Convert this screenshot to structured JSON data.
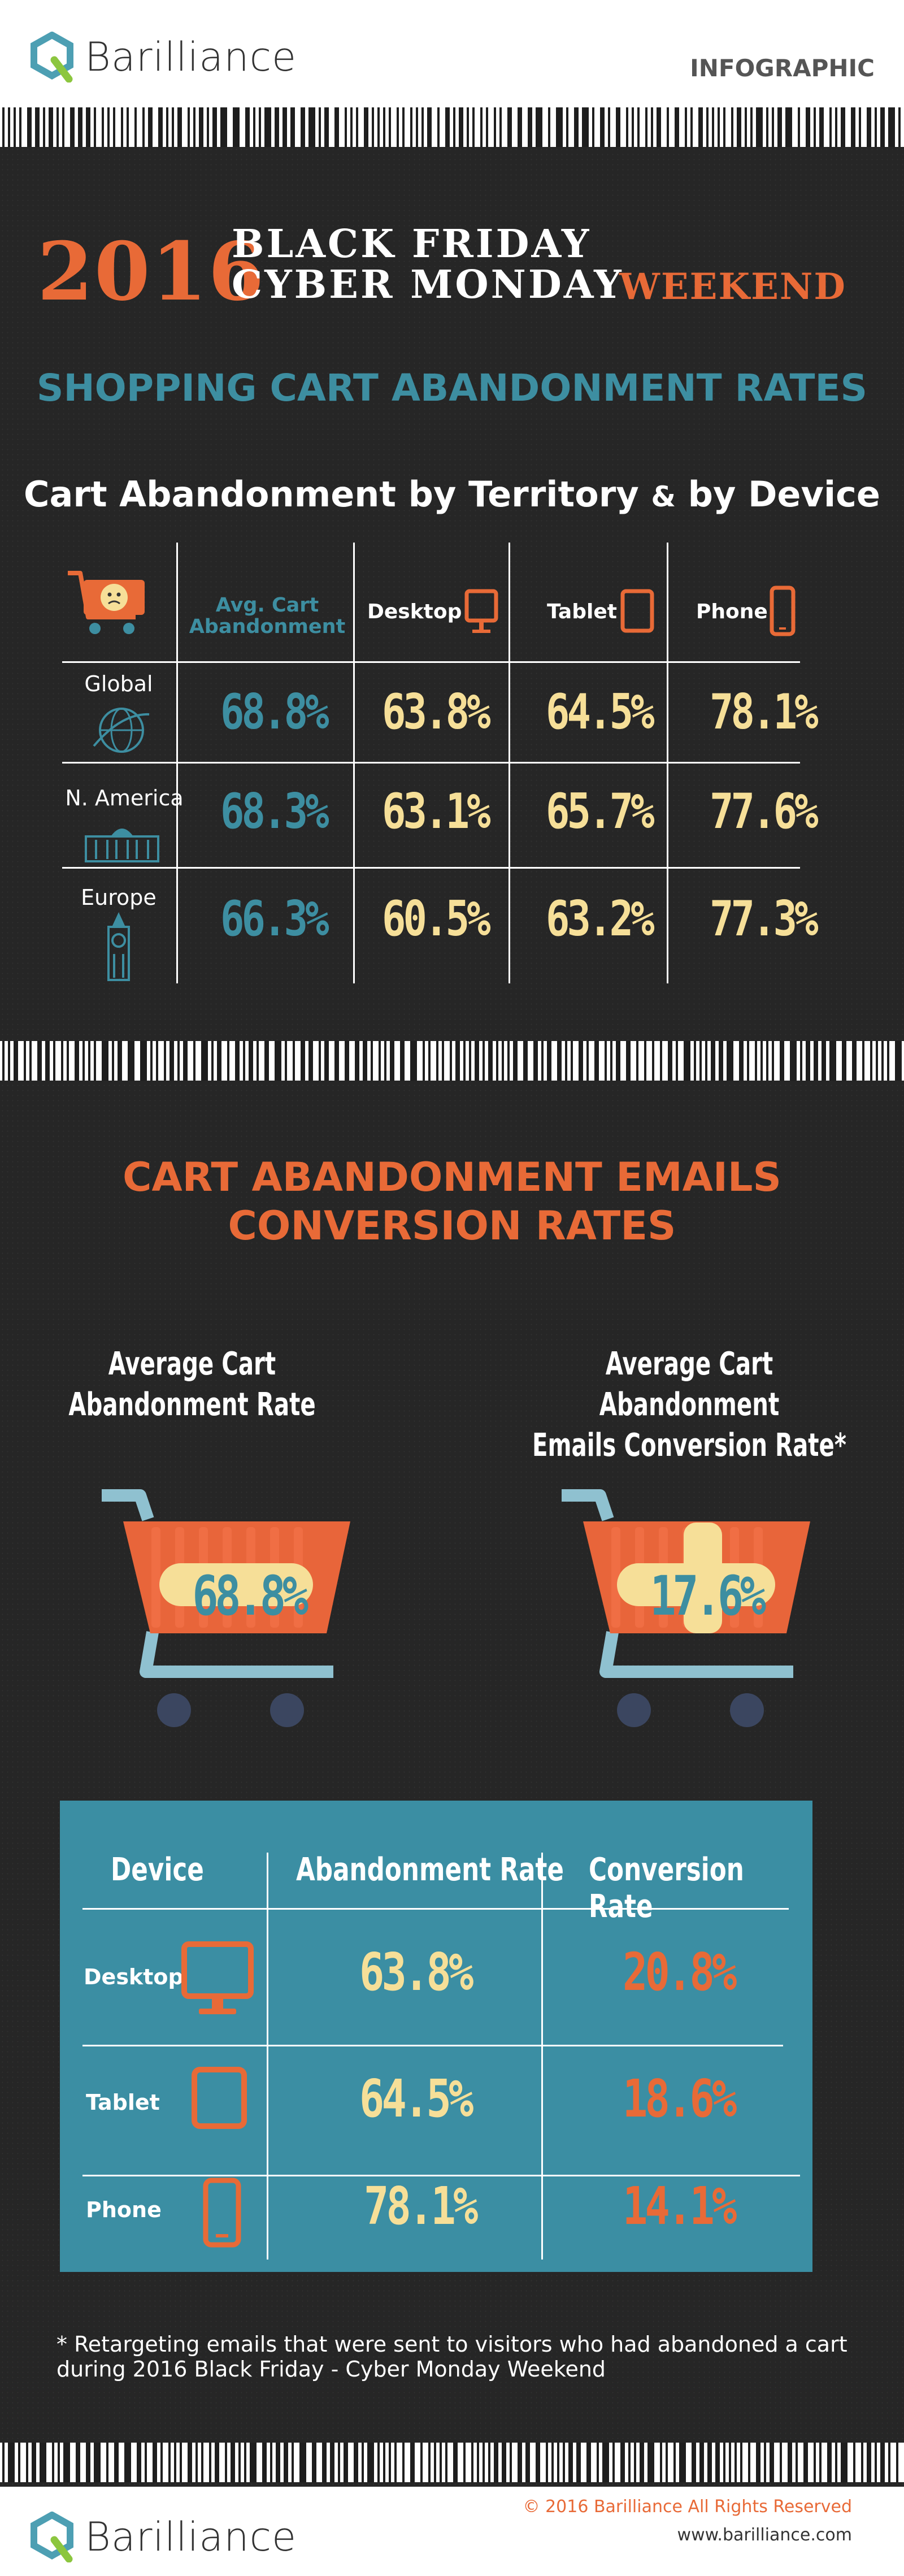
{
  "header": {
    "brand": "Barilliance",
    "tag": "INFOGRAPHIC"
  },
  "title": {
    "year": "2016",
    "line1": "BLACK FRIDAY",
    "line2": "CYBER MONDAY",
    "line3": "WEEKEND"
  },
  "section1": {
    "title": "SHOPPING CART ABANDONMENT RATES",
    "subtitle_a": "Cart Abandonment by Territory",
    "subtitle_amp": "&",
    "subtitle_b": "by Device",
    "columns": {
      "avg": "Avg. Cart Abandonment",
      "desktop": "Desktop",
      "tablet": "Tablet",
      "phone": "Phone"
    },
    "rows": [
      {
        "label": "Global",
        "avg": "68.8%",
        "desktop": "63.8%",
        "tablet": "64.5%",
        "phone": "78.1%"
      },
      {
        "label": "N. America",
        "avg": "68.3%",
        "desktop": "63.1%",
        "tablet": "65.7%",
        "phone": "77.6%"
      },
      {
        "label": "Europe",
        "avg": "66.3%",
        "desktop": "60.5%",
        "tablet": "63.2%",
        "phone": "77.3%"
      }
    ]
  },
  "section2": {
    "title_line1": "CART ABANDONMENT EMAILS",
    "title_line2": "CONVERSION RATES",
    "left_label_1": "Average  Cart",
    "left_label_2": "Abandonment  Rate",
    "left_value": "68.8%",
    "right_label_1": "Average Cart Abandonment",
    "right_label_2": "Emails Conversion Rate*",
    "right_value": "17.6%",
    "table": {
      "headers": {
        "device": "Device",
        "abandonment": "Abandonment Rate",
        "conversion": "Conversion Rate"
      },
      "rows": [
        {
          "device": "Desktop",
          "abandonment": "63.8%",
          "conversion": "20.8%"
        },
        {
          "device": "Tablet",
          "abandonment": "64.5%",
          "conversion": "18.6%"
        },
        {
          "device": "Phone",
          "abandonment": "78.1%",
          "conversion": "14.1%"
        }
      ]
    },
    "footnote": "* Retargeting emails that were sent to visitors who had abandoned a cart during 2016 Black Friday - Cyber Monday Weekend"
  },
  "footer": {
    "brand": "Barilliance",
    "copyright": "© 2016  Barilliance All Rights Reserved",
    "website": "www.barilliance.com"
  },
  "colors": {
    "background": "#262626",
    "orange": "#e86a37",
    "teal": "#3d8ea1",
    "cream": "#f6df98",
    "panel": "#3b8ea3"
  }
}
